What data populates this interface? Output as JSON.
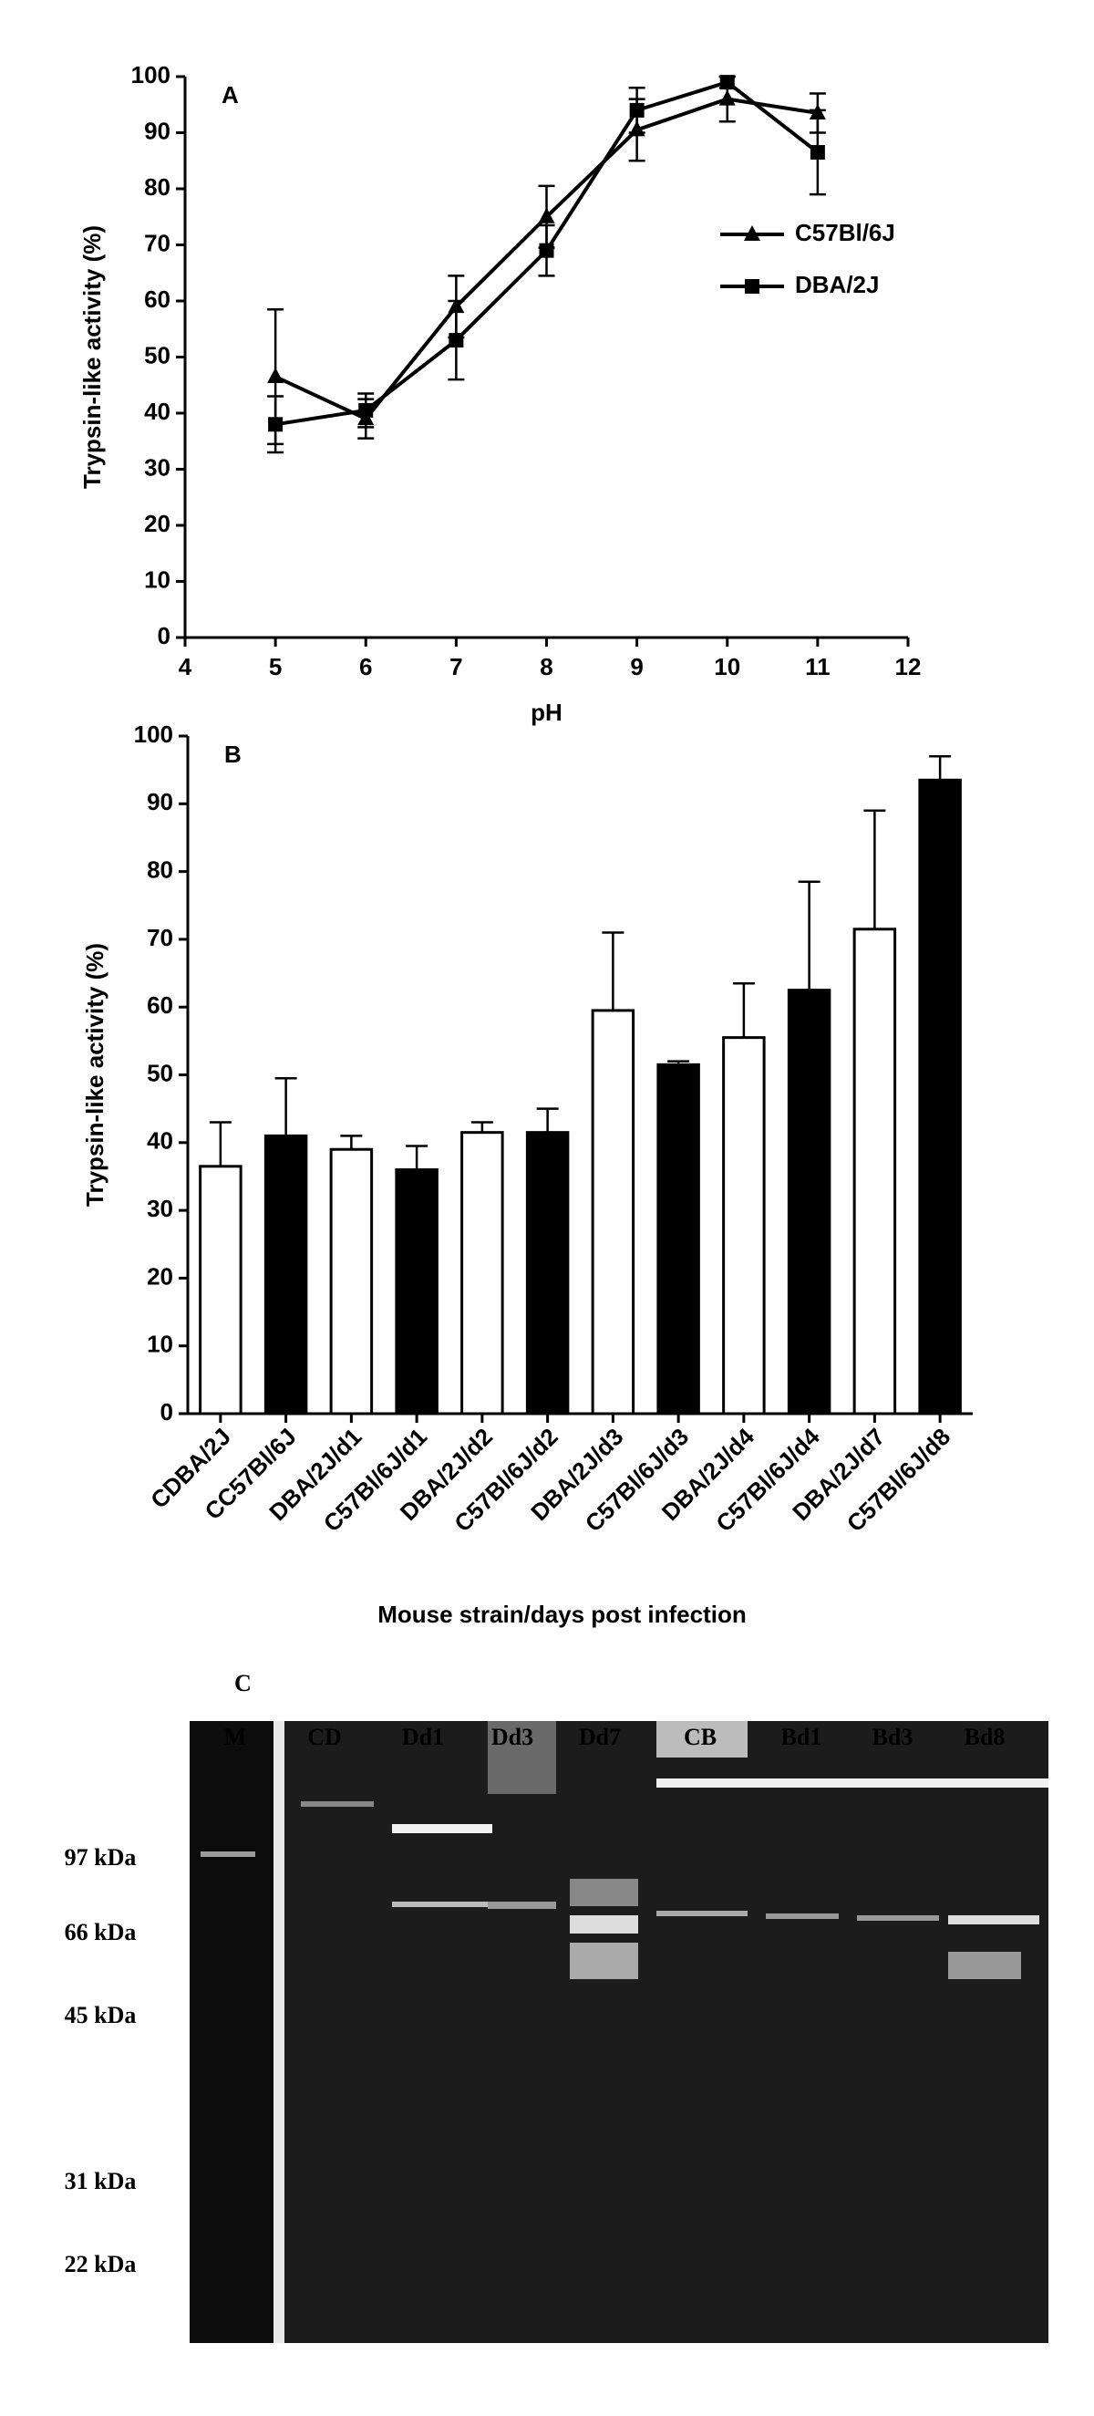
{
  "chart_data": [
    {
      "type": "line",
      "panel_label": "A",
      "x_label": "pH",
      "y_label": "Trypsin-like activity (%)",
      "x": [
        5,
        6,
        7,
        8,
        9,
        10,
        11
      ],
      "series": [
        {
          "name": "C57Bl/6J",
          "color": "#000000",
          "marker": "triangle",
          "values": [
            46.5,
            39,
            59,
            75,
            90.5,
            96,
            93.5
          ],
          "errors": [
            12,
            3.5,
            5.5,
            5.5,
            5.5,
            4,
            3.5
          ]
        },
        {
          "name": "DBA/2J",
          "color": "#000000",
          "marker": "square",
          "values": [
            38,
            40.5,
            53,
            69,
            94,
            99,
            86.5
          ],
          "errors": [
            5,
            3,
            7,
            4.5,
            4,
            1,
            7.5
          ]
        }
      ],
      "xlim": [
        4,
        12
      ],
      "xticks": [
        4,
        5,
        6,
        7,
        8,
        9,
        10,
        11,
        12
      ],
      "ylim": [
        0,
        100
      ],
      "yticks": [
        0,
        10,
        20,
        30,
        40,
        50,
        60,
        70,
        80,
        90,
        100
      ]
    },
    {
      "type": "bar",
      "panel_label": "B",
      "x_label": "Mouse strain/days post infection",
      "y_label": "Trypsin-like activity (%)",
      "categories": [
        "CDBA/2J",
        "CC57Bl/6J",
        "DBA/2J/d1",
        "C57Bl/6J/d1",
        "DBA/2J/d2",
        "C57Bl/6J/d2",
        "DBA/2J/d3",
        "C57Bl/6J/d3",
        "DBA/2J/d4",
        "C57Bl/6J/d4",
        "DBA/2J/d7",
        "C57Bl/6J/d8"
      ],
      "values": [
        36.5,
        41,
        39,
        36,
        41.5,
        41.5,
        59.5,
        51.5,
        55.5,
        62.5,
        71.5,
        93.5
      ],
      "errors": [
        6.5,
        8.5,
        2,
        3.5,
        1.5,
        3.5,
        11.5,
        0.5,
        8,
        16,
        17.5,
        3.5
      ],
      "colors": [
        "#ffffff",
        "#000000",
        "#ffffff",
        "#000000",
        "#ffffff",
        "#000000",
        "#ffffff",
        "#000000",
        "#ffffff",
        "#000000",
        "#ffffff",
        "#000000"
      ],
      "ylim": [
        0,
        100
      ],
      "yticks": [
        0,
        10,
        20,
        30,
        40,
        50,
        60,
        70,
        80,
        90,
        100
      ]
    }
  ],
  "gel": {
    "panel_label": "C",
    "lanes": [
      "M",
      "CD",
      "Dd1",
      "Dd3",
      "Dd7",
      "CB",
      "Bd1",
      "Bd3",
      "Bd8"
    ],
    "markers": [
      "97 kDa",
      "66 kDa",
      "45 kDa",
      "31 kDa",
      "22 kDa"
    ]
  }
}
